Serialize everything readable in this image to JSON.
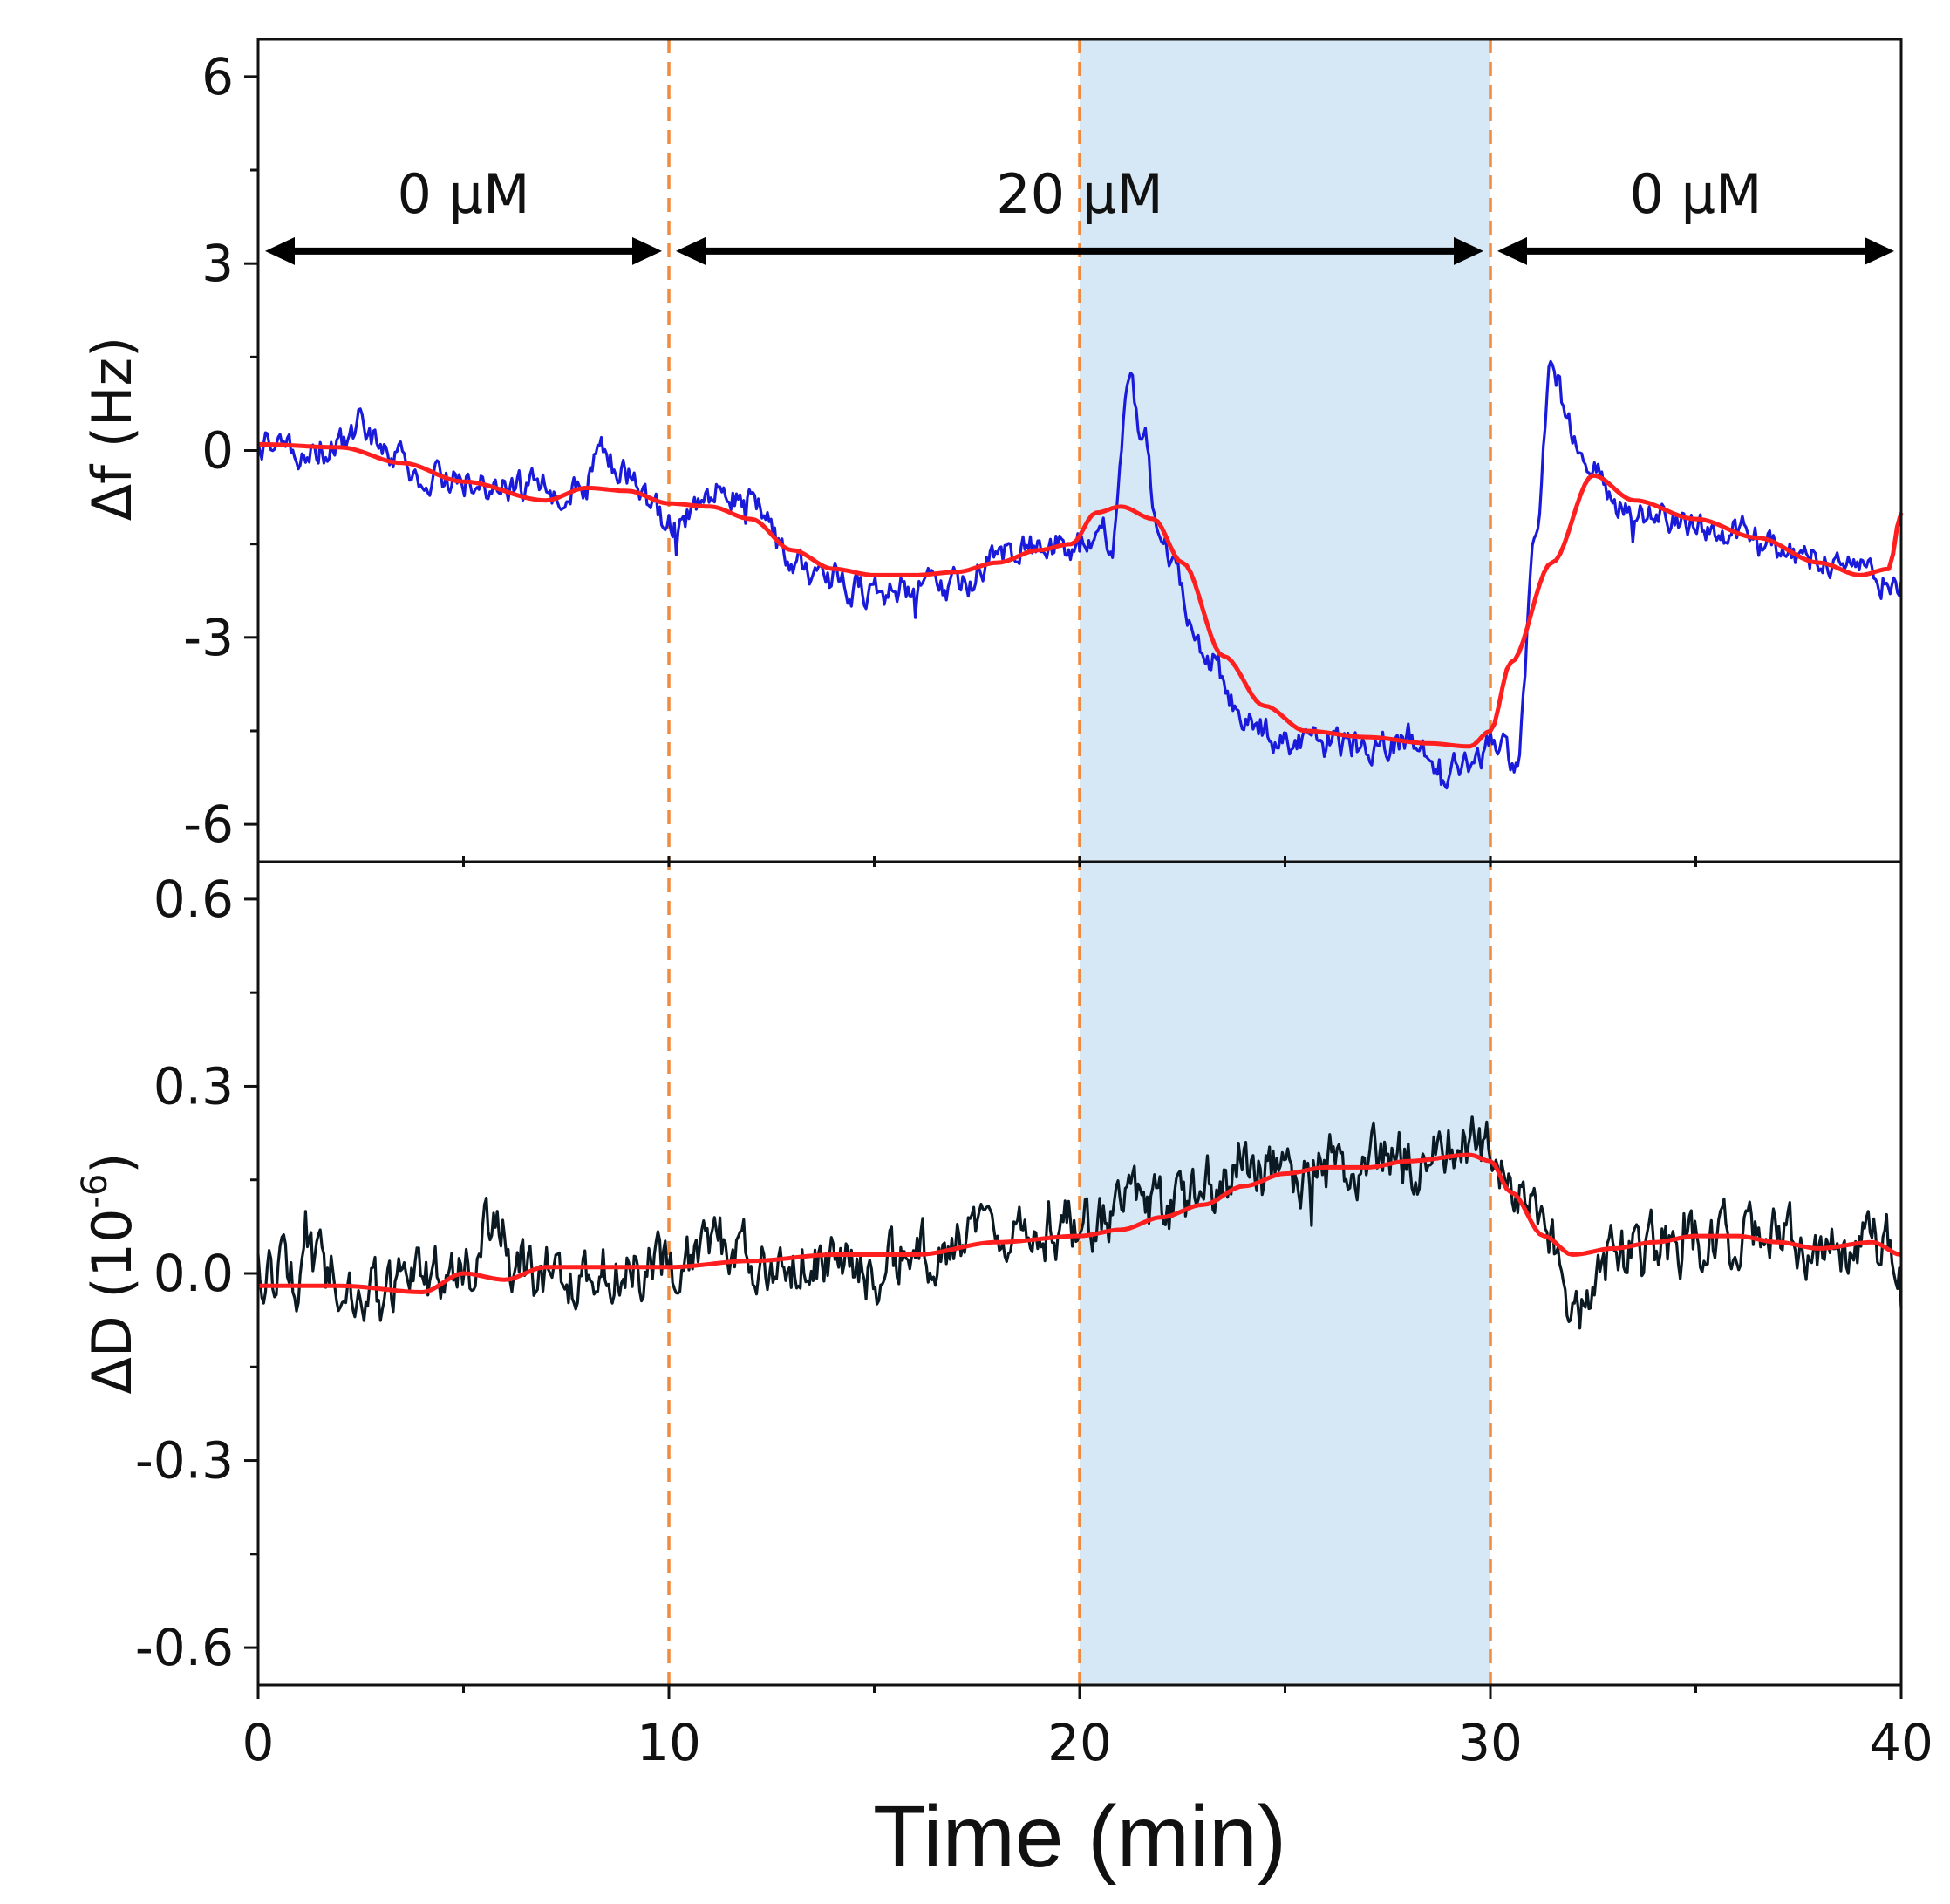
{
  "chart_data": {
    "type": "line",
    "layout": "two stacked panels sharing the time axis",
    "x_axis": {
      "label": "Time (min)",
      "range": [
        0,
        40
      ],
      "ticks": [
        0,
        10,
        20,
        30,
        40
      ],
      "tick_labels": [
        "0",
        "10",
        "20",
        "30",
        "40"
      ]
    },
    "shaded_region": {
      "x": [
        20,
        30
      ],
      "color": "#d6e8f6"
    },
    "vertical_markers": {
      "x": [
        10,
        20,
        30
      ],
      "style": "dashed",
      "color": "#f08a3c"
    },
    "phases": [
      {
        "label": "0 µM",
        "x": [
          0,
          10
        ]
      },
      {
        "label": "20 µM",
        "x": [
          10,
          30
        ]
      },
      {
        "label": "0 µM",
        "x": [
          30,
          40
        ]
      }
    ],
    "panels": [
      {
        "id": "frequency",
        "ylabel_prefix": "Δf",
        "ylabel_suffix": " (Hz)",
        "ylim": [
          -6.6,
          6.6
        ],
        "yticks": [
          6,
          3,
          0,
          -3,
          -6
        ],
        "ytick_labels": [
          "6",
          "3",
          "0",
          "-3",
          "-6"
        ],
        "phase_arrow_y": 3.2,
        "series": [
          {
            "name": "raw Δf",
            "color": "#1a1adb",
            "noise_amplitude": 0.28,
            "anchors": [
              [
                0,
                0.1
              ],
              [
                0.4,
                0.3
              ],
              [
                1,
                0.0
              ],
              [
                2.2,
                0.2
              ],
              [
                2.5,
                0.5
              ],
              [
                3,
                0.0
              ],
              [
                4,
                -0.4
              ],
              [
                5,
                -0.5
              ],
              [
                6,
                -0.6
              ],
              [
                7,
                -0.6
              ],
              [
                8,
                -0.5
              ],
              [
                8.3,
                0.1
              ],
              [
                8.8,
                -0.3
              ],
              [
                9.5,
                -0.6
              ],
              [
                10,
                -1.2
              ],
              [
                11,
                -0.8
              ],
              [
                12,
                -0.8
              ],
              [
                13,
                -1.8
              ],
              [
                14,
                -2.1
              ],
              [
                15,
                -2.3
              ],
              [
                16,
                -2.2
              ],
              [
                17,
                -2.2
              ],
              [
                18,
                -1.7
              ],
              [
                19,
                -1.5
              ],
              [
                20,
                -1.5
              ],
              [
                20.5,
                -1.2
              ],
              [
                20.8,
                -1.5
              ],
              [
                21.2,
                1.2
              ],
              [
                21.5,
                0.4
              ],
              [
                22,
                -1.5
              ],
              [
                23,
                -3.2
              ],
              [
                24,
                -4.2
              ],
              [
                25,
                -4.7
              ],
              [
                26,
                -4.6
              ],
              [
                27,
                -4.8
              ],
              [
                28,
                -4.6
              ],
              [
                29,
                -5.1
              ],
              [
                29.8,
                -4.9
              ],
              [
                30.2,
                -4.6
              ],
              [
                30.6,
                -5.2
              ],
              [
                31.1,
                -1.5
              ],
              [
                31.5,
                1.3
              ],
              [
                32,
                0.3
              ],
              [
                32.5,
                -0.3
              ],
              [
                33,
                -0.9
              ],
              [
                34,
                -1.1
              ],
              [
                35,
                -1.2
              ],
              [
                36,
                -1.3
              ],
              [
                37,
                -1.6
              ],
              [
                38,
                -1.7
              ],
              [
                39,
                -1.9
              ],
              [
                40,
                -2.2
              ]
            ]
          },
          {
            "name": "smoothed Δf",
            "color": "#ff1f1f",
            "anchors": [
              [
                0,
                0.1
              ],
              [
                2,
                0.05
              ],
              [
                3.5,
                -0.2
              ],
              [
                5,
                -0.5
              ],
              [
                7,
                -0.8
              ],
              [
                8,
                -0.6
              ],
              [
                9,
                -0.65
              ],
              [
                10,
                -0.85
              ],
              [
                11,
                -0.9
              ],
              [
                12,
                -1.1
              ],
              [
                13,
                -1.6
              ],
              [
                14,
                -1.9
              ],
              [
                15,
                -2.0
              ],
              [
                16,
                -2.0
              ],
              [
                17,
                -1.95
              ],
              [
                18,
                -1.8
              ],
              [
                19,
                -1.6
              ],
              [
                19.8,
                -1.5
              ],
              [
                20.4,
                -1.0
              ],
              [
                21,
                -0.9
              ],
              [
                21.8,
                -1.1
              ],
              [
                22.5,
                -1.8
              ],
              [
                23.5,
                -3.3
              ],
              [
                24.5,
                -4.1
              ],
              [
                25.5,
                -4.5
              ],
              [
                27,
                -4.6
              ],
              [
                28.5,
                -4.7
              ],
              [
                29.5,
                -4.75
              ],
              [
                30,
                -4.5
              ],
              [
                30.5,
                -3.4
              ],
              [
                31.5,
                -1.8
              ],
              [
                32.5,
                -0.4
              ],
              [
                33.5,
                -0.8
              ],
              [
                35,
                -1.1
              ],
              [
                36.5,
                -1.4
              ],
              [
                38,
                -1.8
              ],
              [
                39,
                -2.0
              ],
              [
                39.7,
                -1.9
              ],
              [
                40,
                -1.0
              ]
            ]
          }
        ]
      },
      {
        "id": "dissipation",
        "ylabel_prefix": "ΔD (10",
        "ylabel_sup": "-6",
        "ylabel_suffix": ")",
        "ylim": [
          -0.66,
          0.66
        ],
        "yticks": [
          0.6,
          0.3,
          0.0,
          -0.3,
          -0.6
        ],
        "ytick_labels": [
          "0.6",
          "0.3",
          "0.0",
          "-0.3",
          "-0.6"
        ],
        "series": [
          {
            "name": "raw ΔD",
            "color": "#0b1a22",
            "noise_amplitude": 0.055,
            "anchors": [
              [
                0,
                0.0
              ],
              [
                1,
                -0.02
              ],
              [
                2,
                0.0
              ],
              [
                3,
                -0.04
              ],
              [
                4,
                -0.02
              ],
              [
                5,
                0.0
              ],
              [
                5.8,
                0.1
              ],
              [
                6.3,
                0.0
              ],
              [
                7,
                0.0
              ],
              [
                8,
                0.0
              ],
              [
                9,
                0.0
              ],
              [
                10,
                0.01
              ],
              [
                12,
                0.03
              ],
              [
                14,
                0.02
              ],
              [
                15,
                0.0
              ],
              [
                16,
                0.03
              ],
              [
                18,
                0.06
              ],
              [
                20,
                0.08
              ],
              [
                22,
                0.1
              ],
              [
                24,
                0.16
              ],
              [
                26,
                0.17
              ],
              [
                28,
                0.18
              ],
              [
                29.5,
                0.2
              ],
              [
                30,
                0.2
              ],
              [
                30.5,
                0.15
              ],
              [
                31.5,
                0.02
              ],
              [
                32,
                -0.05
              ],
              [
                33,
                0.03
              ],
              [
                35,
                0.05
              ],
              [
                37,
                0.05
              ],
              [
                39,
                0.04
              ],
              [
                40,
                0.04
              ]
            ]
          },
          {
            "name": "smoothed ΔD",
            "color": "#ff1f1f",
            "anchors": [
              [
                0,
                -0.02
              ],
              [
                2,
                -0.02
              ],
              [
                4,
                -0.03
              ],
              [
                5,
                0.0
              ],
              [
                6,
                -0.01
              ],
              [
                7,
                0.01
              ],
              [
                9,
                0.01
              ],
              [
                10,
                0.01
              ],
              [
                12,
                0.02
              ],
              [
                14,
                0.03
              ],
              [
                16,
                0.03
              ],
              [
                18,
                0.05
              ],
              [
                20,
                0.06
              ],
              [
                21,
                0.07
              ],
              [
                22,
                0.09
              ],
              [
                23,
                0.11
              ],
              [
                24,
                0.14
              ],
              [
                25,
                0.16
              ],
              [
                26,
                0.17
              ],
              [
                27,
                0.17
              ],
              [
                28,
                0.18
              ],
              [
                29.5,
                0.19
              ],
              [
                30,
                0.18
              ],
              [
                30.5,
                0.13
              ],
              [
                31.3,
                0.06
              ],
              [
                32,
                0.03
              ],
              [
                33,
                0.04
              ],
              [
                34,
                0.05
              ],
              [
                35,
                0.06
              ],
              [
                36,
                0.06
              ],
              [
                37,
                0.05
              ],
              [
                38,
                0.04
              ],
              [
                39.3,
                0.05
              ],
              [
                40,
                0.03
              ]
            ]
          }
        ]
      }
    ]
  }
}
